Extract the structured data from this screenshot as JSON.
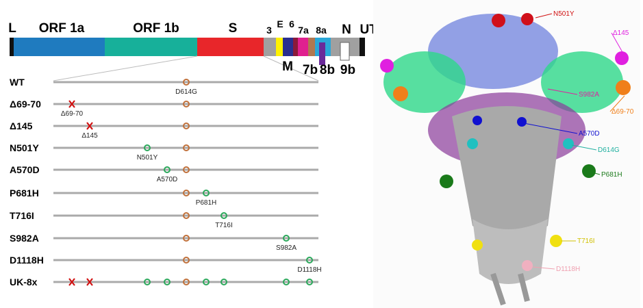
{
  "genome": {
    "top_labels": [
      "L",
      "ORF 1a",
      "ORF 1b",
      "S",
      "3",
      "E",
      "6",
      "7a",
      "8a",
      "N",
      "UTR"
    ],
    "bottom_labels": [
      "M",
      "7b",
      "8b",
      "9b"
    ]
  },
  "variants": [
    {
      "name": "WT",
      "label": "D614G"
    },
    {
      "name": "Δ69-70",
      "label": "Δ69-70"
    },
    {
      "name": "Δ145",
      "label": "Δ145"
    },
    {
      "name": "N501Y",
      "label": "N501Y"
    },
    {
      "name": "A570D",
      "label": "A570D"
    },
    {
      "name": "P681H",
      "label": "P681H"
    },
    {
      "name": "T716I",
      "label": "T716I"
    },
    {
      "name": "S982A",
      "label": "S982A"
    },
    {
      "name": "D1118H",
      "label": "D1118H"
    },
    {
      "name": "UK-8x"
    }
  ],
  "structure_labels": [
    "N501Y",
    "Δ145",
    "Δ69-70",
    "S982A",
    "A570D",
    "D614G",
    "P681H",
    "T716I",
    "D1118H"
  ]
}
